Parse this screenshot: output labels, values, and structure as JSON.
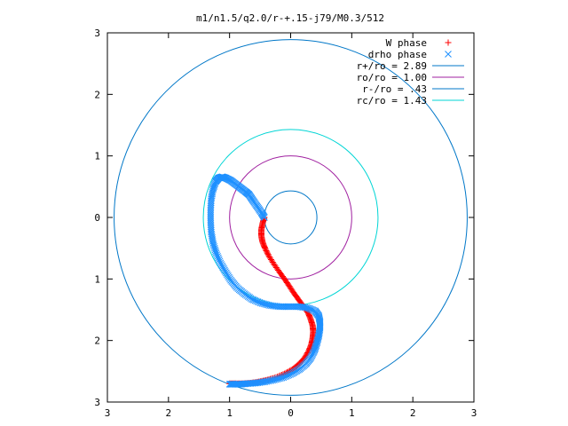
{
  "chart_data": {
    "type": "scatter",
    "title": "m1/n1.5/q2.0/r-+.15-j79/M0.3/512",
    "xlabel": "",
    "ylabel": "",
    "xlim": [
      -3,
      3
    ],
    "ylim": [
      -3,
      3
    ],
    "x_tick_values": [
      -3,
      -2,
      -1,
      0,
      1,
      2,
      3
    ],
    "x_tick_labels": [
      "3",
      "2",
      "1",
      "0",
      "1",
      "2",
      "3"
    ],
    "y_tick_values": [
      3,
      2,
      1,
      0,
      -1,
      -2,
      -3
    ],
    "y_tick_labels": [
      "3",
      "2",
      "1",
      "0",
      "1",
      "2",
      "3"
    ],
    "grid": false,
    "legend_position": "top-right",
    "colors": {
      "w_phase": "#ff0000",
      "drho_phase": "#1e90ff",
      "r_plus": "#0077c8",
      "ro": "#a020a0",
      "r_minus": "#0077c8",
      "rc": "#00d5d5"
    },
    "circles": [
      {
        "name": "r+/ro = 2.89",
        "radius": 2.89,
        "color": "#0077c8"
      },
      {
        "name": "ro/ro = 1.00",
        "radius": 1.0,
        "color": "#a020a0"
      },
      {
        "name": "r-/ro = .43",
        "radius": 0.43,
        "color": "#0077c8"
      },
      {
        "name": "rc/ro = 1.43",
        "radius": 1.43,
        "color": "#00d5d5"
      }
    ],
    "series": [
      {
        "name": "W phase",
        "marker": "+",
        "color": "#ff0000",
        "x": [
          -0.43,
          -0.46,
          -0.48,
          -0.48,
          -0.46,
          -0.42,
          -0.36,
          -0.28,
          -0.19,
          -0.1,
          -0.02,
          0.06,
          0.14,
          0.22,
          0.29,
          0.33,
          0.36,
          0.37,
          0.36,
          0.34,
          0.3,
          0.23,
          0.14,
          0.03,
          -0.1,
          -0.24,
          -0.38,
          -0.52,
          -0.65,
          -0.78,
          -0.9,
          -1.0
        ],
        "y": [
          0.0,
          -0.1,
          -0.2,
          -0.3,
          -0.4,
          -0.5,
          -0.62,
          -0.75,
          -0.88,
          -1.0,
          -1.12,
          -1.24,
          -1.35,
          -1.46,
          -1.56,
          -1.66,
          -1.76,
          -1.86,
          -1.96,
          -2.06,
          -2.16,
          -2.28,
          -2.38,
          -2.47,
          -2.54,
          -2.6,
          -2.64,
          -2.67,
          -2.69,
          -2.7,
          -2.7,
          -2.7
        ]
      },
      {
        "name": "drho phase",
        "marker": "x",
        "color": "#1e90ff",
        "x": [
          -0.43,
          -0.48,
          -0.55,
          -0.62,
          -0.68,
          -0.74,
          -0.82,
          -0.9,
          -0.98,
          -1.06,
          -1.12,
          -1.18,
          -1.23,
          -1.27,
          -1.3,
          -1.31,
          -1.31,
          -1.3,
          -1.27,
          -1.22,
          -1.15,
          -1.07,
          -0.98,
          -0.88,
          -0.76,
          -0.63,
          -0.49,
          -0.34,
          -0.18,
          -0.02,
          0.14,
          0.28,
          0.4,
          0.46,
          0.48,
          0.48,
          0.46,
          0.43,
          0.39,
          0.33,
          0.25,
          0.14,
          0.02,
          -0.12,
          -0.27,
          -0.42,
          -0.56,
          -0.7,
          -0.82,
          -0.93,
          -1.0
        ],
        "y": [
          0.0,
          0.08,
          0.18,
          0.28,
          0.37,
          0.42,
          0.48,
          0.54,
          0.6,
          0.64,
          0.66,
          0.64,
          0.58,
          0.46,
          0.3,
          0.12,
          -0.06,
          -0.24,
          -0.42,
          -0.58,
          -0.74,
          -0.88,
          -1.02,
          -1.14,
          -1.24,
          -1.33,
          -1.39,
          -1.43,
          -1.45,
          -1.45,
          -1.45,
          -1.47,
          -1.52,
          -1.6,
          -1.7,
          -1.8,
          -1.92,
          -2.04,
          -2.16,
          -2.28,
          -2.38,
          -2.47,
          -2.54,
          -2.6,
          -2.64,
          -2.67,
          -2.69,
          -2.7,
          -2.71,
          -2.71,
          -2.71
        ]
      }
    ]
  }
}
